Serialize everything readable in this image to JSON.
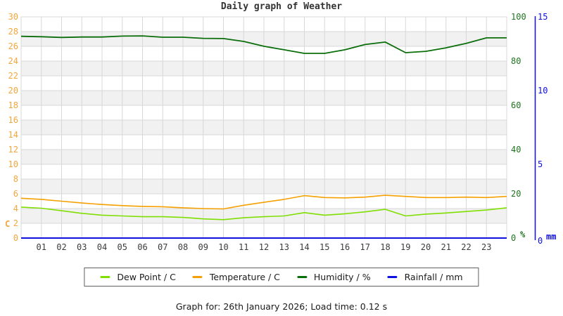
{
  "title": "Daily graph of Weather",
  "footer": "Graph for: 26th January 2026; Load time: 0.12 s",
  "legend": {
    "items": [
      {
        "label": "Dew Point / C",
        "color": "#7fdf00"
      },
      {
        "label": "Temperature / C",
        "color": "#f5a000"
      },
      {
        "label": "Humidity / %",
        "color": "#0b6e0b"
      },
      {
        "label": "Rainfall / mm",
        "color": "#0f0fe0"
      }
    ]
  },
  "chart_data": {
    "type": "line",
    "title": "Daily graph of Weather",
    "x_hours": [
      0,
      1,
      2,
      3,
      4,
      5,
      6,
      7,
      8,
      9,
      10,
      11,
      12,
      13,
      14,
      15,
      16,
      17,
      18,
      19,
      20,
      21,
      22,
      23,
      24
    ],
    "x_tick_labels": [
      "01",
      "02",
      "03",
      "04",
      "05",
      "06",
      "07",
      "08",
      "09",
      "10",
      "11",
      "12",
      "13",
      "14",
      "15",
      "16",
      "17",
      "18",
      "19",
      "20",
      "21",
      "22",
      "23"
    ],
    "grid": true,
    "band_color": "#f1f1f1",
    "grid_color": "#d8d8d8",
    "axes": {
      "temperature": {
        "label": "C",
        "color": "#f3a63c",
        "min": 0,
        "max": 30,
        "ticks": [
          0,
          2,
          4,
          6,
          8,
          10,
          12,
          14,
          16,
          18,
          20,
          22,
          24,
          26,
          28,
          30
        ],
        "side": "left"
      },
      "humidity": {
        "label": "%",
        "color": "#1e741e",
        "min": 0,
        "max": 100,
        "ticks": [
          0,
          20,
          40,
          60,
          80,
          100
        ],
        "side": "right"
      },
      "rainfall": {
        "label": "mm",
        "color": "#0f0fe0",
        "min": 0,
        "max": 15,
        "ticks": [
          0,
          5,
          10,
          15
        ],
        "side": "far-right"
      }
    },
    "series": [
      {
        "name": "Dew Point / C",
        "axis": "temperature",
        "color": "#7fdf00",
        "width": 1.6,
        "values": [
          4.2,
          4.05,
          3.7,
          3.35,
          3.1,
          3.0,
          2.9,
          2.9,
          2.8,
          2.6,
          2.5,
          2.75,
          2.9,
          3.0,
          3.45,
          3.1,
          3.3,
          3.55,
          3.9,
          3.0,
          3.25,
          3.4,
          3.6,
          3.8,
          4.1
        ]
      },
      {
        "name": "Temperature / C",
        "axis": "temperature",
        "color": "#f5a000",
        "width": 1.6,
        "values": [
          5.4,
          5.25,
          5.0,
          4.75,
          4.55,
          4.4,
          4.3,
          4.25,
          4.1,
          4.0,
          3.95,
          4.45,
          4.85,
          5.25,
          5.75,
          5.5,
          5.45,
          5.55,
          5.8,
          5.65,
          5.5,
          5.5,
          5.55,
          5.5,
          5.65
        ]
      },
      {
        "name": "Humidity / %",
        "axis": "humidity",
        "color": "#0b6e0b",
        "width": 1.8,
        "values": [
          91.2,
          91.0,
          90.7,
          90.9,
          90.9,
          91.3,
          91.4,
          90.8,
          90.8,
          90.3,
          90.2,
          88.9,
          86.7,
          85.1,
          83.5,
          83.5,
          85.1,
          87.5,
          88.6,
          83.8,
          84.4,
          86.0,
          88.0,
          90.5,
          90.5
        ]
      },
      {
        "name": "Rainfall / mm",
        "axis": "rainfall",
        "color": "#0f0fe0",
        "width": 2,
        "values": [
          0,
          0,
          0,
          0,
          0,
          0,
          0,
          0,
          0,
          0,
          0,
          0,
          0,
          0,
          0,
          0,
          0,
          0,
          0,
          0,
          0,
          0,
          0,
          0,
          0
        ]
      }
    ]
  }
}
